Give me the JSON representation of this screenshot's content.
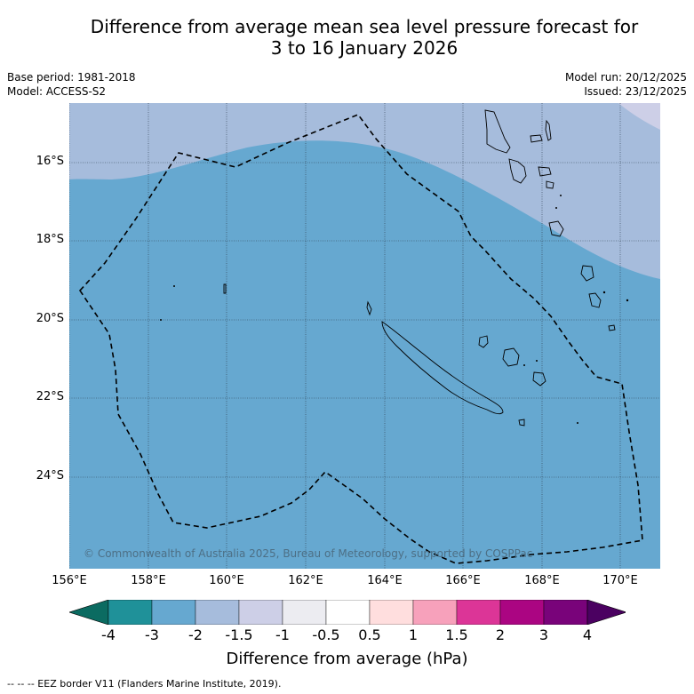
{
  "title_line1": "Difference from average mean sea level pressure forecast for",
  "title_line2": "3 to 16 January 2026",
  "base_period": "Base period: 1981-2018",
  "model": "Model: ACCESS-S2",
  "model_run": "Model run: 20/12/2025",
  "issued": "Issued: 23/12/2025",
  "copyright": "© Commonwealth of Australia 2025, Bureau of Meteorology, supported by COSPPac",
  "lat_labels": [
    "16°S",
    "18°S",
    "20°S",
    "22°S",
    "24°S"
  ],
  "lon_labels": [
    "156°E",
    "158°E",
    "160°E",
    "162°E",
    "164°E",
    "166°E",
    "168°E",
    "170°E"
  ],
  "colorbar": {
    "title": "Difference from average (hPa)",
    "ticks": [
      "-4",
      "-3",
      "-2",
      "-1.5",
      "-1",
      "-0.5",
      "0.5",
      "1",
      "1.5",
      "2",
      "3",
      "4"
    ],
    "under_color": "#0b6b61",
    "colors": [
      "#1f9199",
      "#66a8d0",
      "#a6bcdc",
      "#cdcfe7",
      "#ececf1",
      "#ffffff",
      "#ffdede",
      "#f7a1bb",
      "#dc3597",
      "#ab0582",
      "#79037a"
    ],
    "over_color": "#4b0161"
  },
  "footer": "--  --  -- EEZ border V11 (Flanders Marine Institute, 2019)."
}
